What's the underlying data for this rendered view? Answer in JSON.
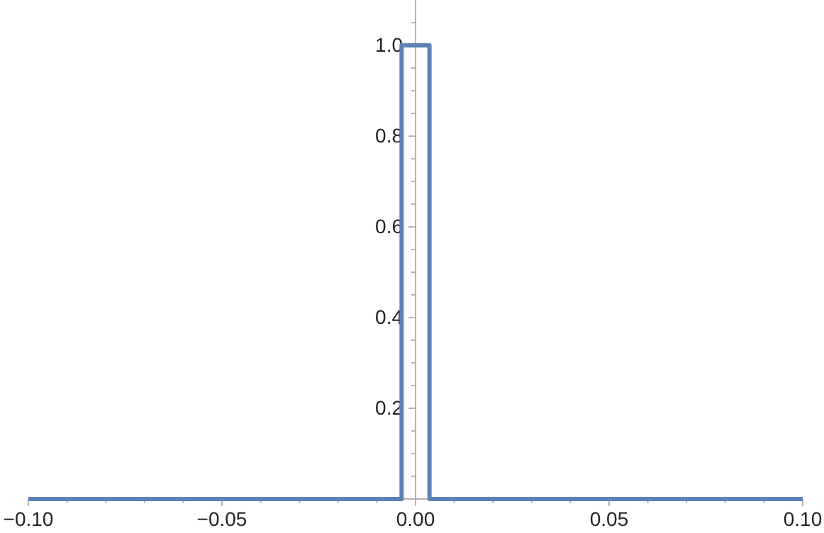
{
  "chart_data": {
    "type": "step",
    "x": [
      -0.1,
      -0.0036,
      0.0036,
      0.1
    ],
    "series": [
      {
        "color": "#5e81b5",
        "values": [
          0,
          1,
          0,
          0
        ]
      }
    ],
    "xlim": [
      -0.1,
      0.1
    ],
    "ylim": [
      0,
      1.1
    ],
    "xticks": [
      {
        "value": -0.1,
        "label": "−0.10"
      },
      {
        "value": -0.09,
        "label": null
      },
      {
        "value": -0.08,
        "label": null
      },
      {
        "value": -0.07,
        "label": null
      },
      {
        "value": -0.06,
        "label": null
      },
      {
        "value": -0.05,
        "label": "−0.05"
      },
      {
        "value": -0.04,
        "label": null
      },
      {
        "value": -0.03,
        "label": null
      },
      {
        "value": -0.02,
        "label": null
      },
      {
        "value": -0.01,
        "label": null
      },
      {
        "value": 0,
        "label": "0.00"
      },
      {
        "value": 0.01,
        "label": null
      },
      {
        "value": 0.02,
        "label": null
      },
      {
        "value": 0.03,
        "label": null
      },
      {
        "value": 0.04,
        "label": null
      },
      {
        "value": 0.05,
        "label": "0.05"
      },
      {
        "value": 0.06,
        "label": null
      },
      {
        "value": 0.07,
        "label": null
      },
      {
        "value": 0.08,
        "label": null
      },
      {
        "value": 0.09,
        "label": null
      },
      {
        "value": 0.1,
        "label": "0.10"
      }
    ],
    "yticks": [
      {
        "value": 0.05,
        "label": null
      },
      {
        "value": 0.1,
        "label": null
      },
      {
        "value": 0.15,
        "label": null
      },
      {
        "value": 0.2,
        "label": "0.2"
      },
      {
        "value": 0.25,
        "label": null
      },
      {
        "value": 0.3,
        "label": null
      },
      {
        "value": 0.35,
        "label": null
      },
      {
        "value": 0.4,
        "label": "0.4"
      },
      {
        "value": 0.45,
        "label": null
      },
      {
        "value": 0.5,
        "label": null
      },
      {
        "value": 0.55,
        "label": null
      },
      {
        "value": 0.6,
        "label": "0.6"
      },
      {
        "value": 0.65,
        "label": null
      },
      {
        "value": 0.7,
        "label": null
      },
      {
        "value": 0.75,
        "label": null
      },
      {
        "value": 0.8,
        "label": "0.8"
      },
      {
        "value": 0.85,
        "label": null
      },
      {
        "value": 0.9,
        "label": null
      },
      {
        "value": 0.95,
        "label": null
      },
      {
        "value": 1.0,
        "label": "1.0"
      },
      {
        "value": 1.05,
        "label": null
      }
    ],
    "grid": false,
    "line_style": "solid",
    "marker": "none"
  }
}
